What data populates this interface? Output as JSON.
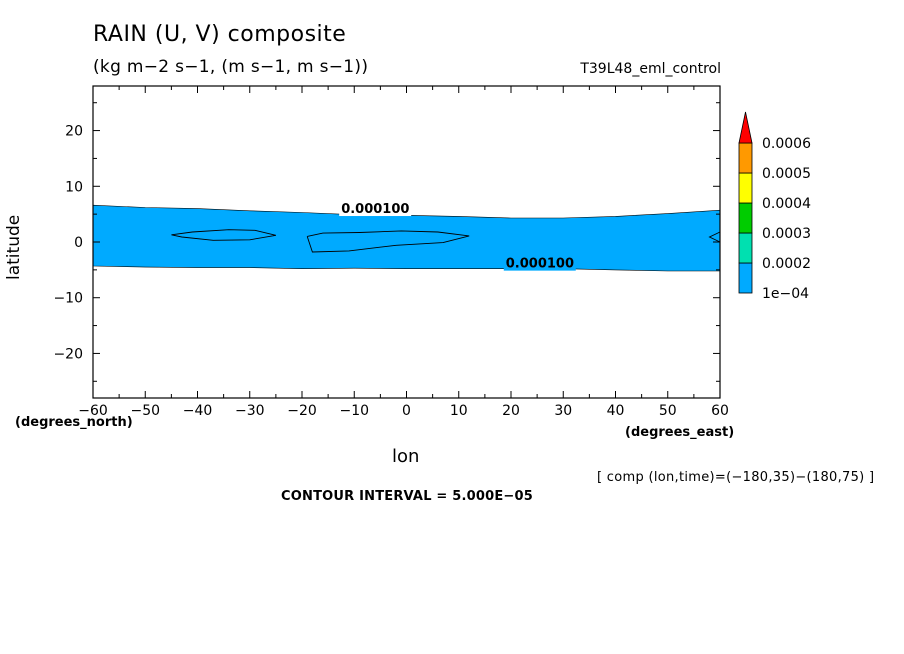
{
  "title": "RAIN (U, V) composite",
  "units": "(kg m−2 s−1, (m s−1, m s−1))",
  "run_name": "T39L48_eml_control",
  "x_units": "(degrees_east)",
  "y_units": "(degrees_north)",
  "composite_note": "[ comp (lon,time)=(−180,35)−(180,75) ]",
  "contour_interval": "CONTOUR INTERVAL = 5.000E−05",
  "colors": {
    "fill_1e4": "#00aaff",
    "fill_2e4": "#00e0b0",
    "fill_3e4": "#00cc00",
    "fill_4e4": "#ffff00",
    "fill_5e4": "#ff9900",
    "fill_6e4": "#ff0000"
  },
  "chart_data": {
    "type": "contour",
    "title": "RAIN (U, V) composite",
    "xlabel": "lon",
    "ylabel": "latitude",
    "xlim": [
      -60,
      60
    ],
    "ylim": [
      -28,
      28
    ],
    "x_ticks": [
      -60,
      -50,
      -40,
      -30,
      -20,
      -10,
      0,
      10,
      20,
      30,
      40,
      50,
      60
    ],
    "y_ticks": [
      -20,
      -10,
      0,
      10,
      20
    ],
    "contour_levels": [
      0.0001,
      0.00015
    ],
    "contour_labels": [
      {
        "text": "0.000100",
        "x": -12.5,
        "y": 5.2
      },
      {
        "text": "0.000100",
        "x": 19,
        "y": -4.6
      }
    ],
    "band_0001": {
      "north_edge": [
        [
          -60,
          6.6
        ],
        [
          -50,
          6.2
        ],
        [
          -40,
          6.0
        ],
        [
          -30,
          5.6
        ],
        [
          -20,
          5.3
        ],
        [
          -10,
          4.9
        ],
        [
          0,
          4.8
        ],
        [
          10,
          4.6
        ],
        [
          20,
          4.3
        ],
        [
          30,
          4.3
        ],
        [
          40,
          4.6
        ],
        [
          50,
          5.1
        ],
        [
          60,
          5.7
        ]
      ],
      "south_edge": [
        [
          -60,
          -4.3
        ],
        [
          -50,
          -4.5
        ],
        [
          -40,
          -4.6
        ],
        [
          -30,
          -4.6
        ],
        [
          -20,
          -4.8
        ],
        [
          -10,
          -4.7
        ],
        [
          0,
          -4.8
        ],
        [
          10,
          -4.8
        ],
        [
          20,
          -4.8
        ],
        [
          30,
          -4.8
        ],
        [
          40,
          -5.0
        ],
        [
          50,
          -5.2
        ],
        [
          60,
          -5.2
        ]
      ]
    },
    "inner_contours_00015": [
      [
        [
          -45,
          1.3
        ],
        [
          -41,
          1.8
        ],
        [
          -34,
          2.2
        ],
        [
          -29,
          2.1
        ],
        [
          -25,
          1.2
        ],
        [
          -30,
          0.4
        ],
        [
          -37,
          0.3
        ],
        [
          -43,
          0.9
        ],
        [
          -45,
          1.3
        ]
      ],
      [
        [
          -19,
          1.0
        ],
        [
          -16,
          1.6
        ],
        [
          -9,
          1.7
        ],
        [
          -1,
          2.0
        ],
        [
          6,
          1.8
        ],
        [
          12,
          1.1
        ],
        [
          7,
          -0.1
        ],
        [
          -2,
          -0.6
        ],
        [
          -11,
          -1.6
        ],
        [
          -18,
          -1.8
        ],
        [
          -19,
          1.0
        ]
      ],
      [
        [
          60,
          1.8
        ],
        [
          58,
          0.9
        ],
        [
          60,
          0.0
        ]
      ]
    ],
    "colorbar": {
      "levels": [
        "1e−04",
        "0.0002",
        "0.0003",
        "0.0004",
        "0.0005",
        "0.0006"
      ]
    },
    "grid": false
  }
}
